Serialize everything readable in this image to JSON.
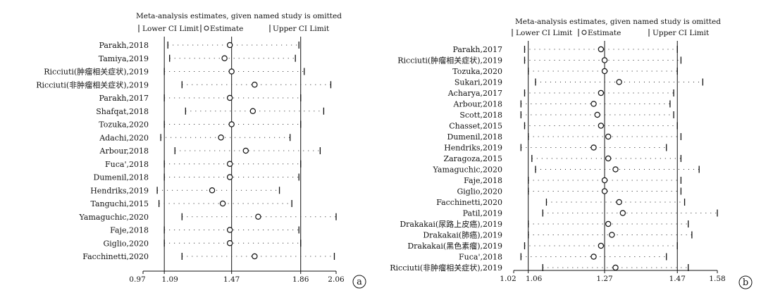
{
  "chart_data": [
    {
      "type": "forest",
      "panel_label": "(a)",
      "title": "Meta-analysis estimates, given named study is omitted",
      "legend": [
        "Lower CI Limit",
        "Estimate",
        "Upper CI Limit"
      ],
      "x_ticks": [
        "0.97",
        "1.09",
        "1.47",
        "1.86",
        "2.06"
      ],
      "x_tick_values": [
        0.97,
        1.09,
        1.47,
        1.86,
        2.06
      ],
      "xlim": [
        0.97,
        2.06
      ],
      "reference_lines": [
        1.09,
        1.47,
        1.86
      ],
      "studies": [
        {
          "label": "Parakh,2018",
          "lower": 1.11,
          "estimate": 1.46,
          "upper": 1.85
        },
        {
          "label": "Tamiya,2019",
          "lower": 1.12,
          "estimate": 1.43,
          "upper": 1.83
        },
        {
          "label": "Ricciuti(肿瘤相关症状),2019",
          "lower": 1.09,
          "estimate": 1.47,
          "upper": 1.88
        },
        {
          "label": "Ricciuti(非肿瘤相关症状),2019",
          "lower": 1.19,
          "estimate": 1.6,
          "upper": 2.03
        },
        {
          "label": "Parakh,2017",
          "lower": 1.09,
          "estimate": 1.46,
          "upper": 1.86
        },
        {
          "label": "Shafqat,2018",
          "lower": 1.21,
          "estimate": 1.59,
          "upper": 1.99
        },
        {
          "label": "Tozuka,2020",
          "lower": 1.09,
          "estimate": 1.47,
          "upper": 1.86
        },
        {
          "label": "Adachi,2020",
          "lower": 1.07,
          "estimate": 1.41,
          "upper": 1.8
        },
        {
          "label": "Arbour,2018",
          "lower": 1.15,
          "estimate": 1.55,
          "upper": 1.97
        },
        {
          "label": "Fuca',2018",
          "lower": 1.09,
          "estimate": 1.46,
          "upper": 1.86
        },
        {
          "label": "Dumenil,2018",
          "lower": 1.09,
          "estimate": 1.46,
          "upper": 1.85
        },
        {
          "label": "Hendriks,2019",
          "lower": 1.05,
          "estimate": 1.36,
          "upper": 1.74
        },
        {
          "label": "Tanguchi,2015",
          "lower": 1.06,
          "estimate": 1.42,
          "upper": 1.81
        },
        {
          "label": "Yamaguchic,2020",
          "lower": 1.19,
          "estimate": 1.62,
          "upper": 2.06
        },
        {
          "label": "Faje,2018",
          "lower": 1.09,
          "estimate": 1.46,
          "upper": 1.85
        },
        {
          "label": "Giglio,2020",
          "lower": 1.09,
          "estimate": 1.46,
          "upper": 1.86
        },
        {
          "label": "Facchinetti,2020",
          "lower": 1.19,
          "estimate": 1.6,
          "upper": 2.05
        }
      ]
    },
    {
      "type": "forest",
      "panel_label": "(b)",
      "title": "Meta-analysis estimates, given named study is omitted",
      "legend": [
        "Lower CI Limit",
        "Estimate",
        "Upper CI Limit"
      ],
      "x_ticks": [
        "1.02",
        "1.06",
        "1.27",
        "1.47",
        "1.58"
      ],
      "x_tick_values": [
        1.02,
        1.06,
        1.27,
        1.47,
        1.58
      ],
      "xlim": [
        1.02,
        1.58
      ],
      "reference_lines": [
        1.06,
        1.27,
        1.47
      ],
      "studies": [
        {
          "label": "Parakh,2017",
          "lower": 1.05,
          "estimate": 1.26,
          "upper": 1.47
        },
        {
          "label": "Ricciuti(肿瘤相关症状),2019",
          "lower": 1.05,
          "estimate": 1.27,
          "upper": 1.48
        },
        {
          "label": "Tozuka,2020",
          "lower": 1.06,
          "estimate": 1.27,
          "upper": 1.47
        },
        {
          "label": "Sukari,2019",
          "lower": 1.08,
          "estimate": 1.31,
          "upper": 1.54
        },
        {
          "label": "Acharya,2017",
          "lower": 1.05,
          "estimate": 1.26,
          "upper": 1.46
        },
        {
          "label": "Arbour,2018",
          "lower": 1.04,
          "estimate": 1.24,
          "upper": 1.45
        },
        {
          "label": "Scott,2018",
          "lower": 1.04,
          "estimate": 1.25,
          "upper": 1.46
        },
        {
          "label": "Chasset,2015",
          "lower": 1.05,
          "estimate": 1.26,
          "upper": 1.47
        },
        {
          "label": "Dumenil,2018",
          "lower": 1.06,
          "estimate": 1.28,
          "upper": 1.48
        },
        {
          "label": "Hendriks,2019",
          "lower": 1.04,
          "estimate": 1.24,
          "upper": 1.44
        },
        {
          "label": "Zaragoza,2015",
          "lower": 1.07,
          "estimate": 1.28,
          "upper": 1.48
        },
        {
          "label": "Yamaguchic,2020",
          "lower": 1.08,
          "estimate": 1.3,
          "upper": 1.53
        },
        {
          "label": "Faje,2018",
          "lower": 1.06,
          "estimate": 1.27,
          "upper": 1.48
        },
        {
          "label": "Giglio,2020",
          "lower": 1.06,
          "estimate": 1.27,
          "upper": 1.48
        },
        {
          "label": "Facchinetti,2020",
          "lower": 1.11,
          "estimate": 1.31,
          "upper": 1.49
        },
        {
          "label": "Patil,2019",
          "lower": 1.1,
          "estimate": 1.32,
          "upper": 1.58
        },
        {
          "label": "Drakakai(尿路上皮癌),2019",
          "lower": 1.06,
          "estimate": 1.28,
          "upper": 1.5
        },
        {
          "label": "Drakakai(肺癌),2019",
          "lower": 1.06,
          "estimate": 1.29,
          "upper": 1.51
        },
        {
          "label": "Drakakai(黑色素瘤),2019",
          "lower": 1.05,
          "estimate": 1.26,
          "upper": 1.47
        },
        {
          "label": "Fuca',2018",
          "lower": 1.04,
          "estimate": 1.24,
          "upper": 1.44
        },
        {
          "label": "Ricciuti(非肿瘤相关症状),2019",
          "lower": 1.1,
          "estimate": 1.3,
          "upper": 1.5
        }
      ]
    }
  ]
}
